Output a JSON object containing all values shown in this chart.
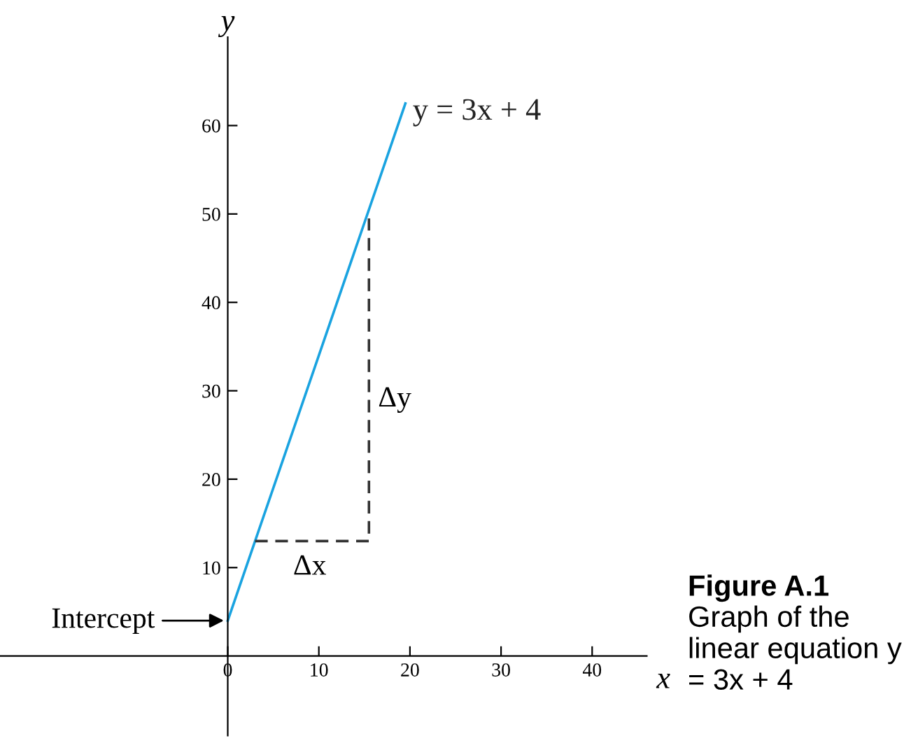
{
  "chart_data": {
    "type": "line",
    "xlabel": "x",
    "ylabel": "y",
    "xlim": [
      -25,
      46
    ],
    "ylim": [
      -9,
      70
    ],
    "xticks": [
      0,
      10,
      20,
      30,
      40
    ],
    "yticks": [
      10,
      20,
      30,
      40,
      50,
      60
    ],
    "grid": false,
    "legend": false,
    "series": [
      {
        "name": "y = 3x + 4",
        "color": "#1aa3e0",
        "x": [
          0,
          19.5
        ],
        "values": [
          4,
          62.5
        ],
        "line_style": "solid"
      },
      {
        "color": "#333333",
        "x": [
          3,
          15.5,
          15.5
        ],
        "values": [
          13,
          13,
          49.5
        ],
        "line_style": "dashed"
      }
    ],
    "annotations": [
      {
        "text": "Intercept",
        "x": 0,
        "y": 4
      },
      {
        "text": "Δx",
        "x": 9,
        "y": 13
      },
      {
        "text": "Δy",
        "x": 15.5,
        "y": 29
      },
      "Figure A.1",
      "Graph of the linear equation y = 3x + 4"
    ]
  }
}
